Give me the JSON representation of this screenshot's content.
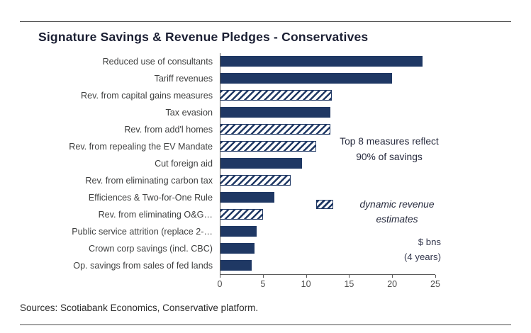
{
  "title": "Signature Savings & Revenue Pledges - Conservatives",
  "source": "Sources: Scotiabank Economics, Conservative platform.",
  "annotations": {
    "top8": "Top 8 measures reflect 90% of savings",
    "legend_label": "dynamic revenue estimates",
    "units_line1": "$ bns",
    "units_line2": "(4 years)"
  },
  "colors": {
    "bar_solid": "#1f3864",
    "hatch_background": "#ffffff",
    "axis": "#595959",
    "label_text": "#3f4040"
  },
  "chart_data": {
    "type": "bar",
    "orientation": "horizontal",
    "title": "Signature Savings & Revenue Pledges - Conservatives",
    "xlabel": "$ bns (4 years)",
    "ylabel": "",
    "xlim": [
      0,
      25
    ],
    "xticks": [
      0,
      5,
      10,
      15,
      20,
      25
    ],
    "grid": false,
    "legend_position": "inside-right",
    "categories": [
      "Reduced use of consultants",
      "Tariff revenues",
      "Rev. from capital gains measures",
      "Tax evasion",
      "Rev. from add'l homes",
      "Rev. from repealing the EV Mandate",
      "Cut foreign aid",
      "Rev. from eliminating carbon tax",
      "Efficiences & Two-for-One Rule",
      "Rev. from eliminating O&G…",
      "Public service attrition (replace 2-…",
      "Crown corp savings (incl. CBC)",
      "Op. savings from sales of fed lands"
    ],
    "values": [
      23.5,
      20,
      13,
      12.8,
      12.8,
      11.2,
      9.5,
      8.2,
      6.3,
      5,
      4.3,
      4,
      3.7
    ],
    "hatched": [
      false,
      false,
      true,
      false,
      true,
      true,
      false,
      true,
      false,
      true,
      false,
      false,
      false
    ],
    "hatch_meaning": "dynamic revenue estimates"
  }
}
